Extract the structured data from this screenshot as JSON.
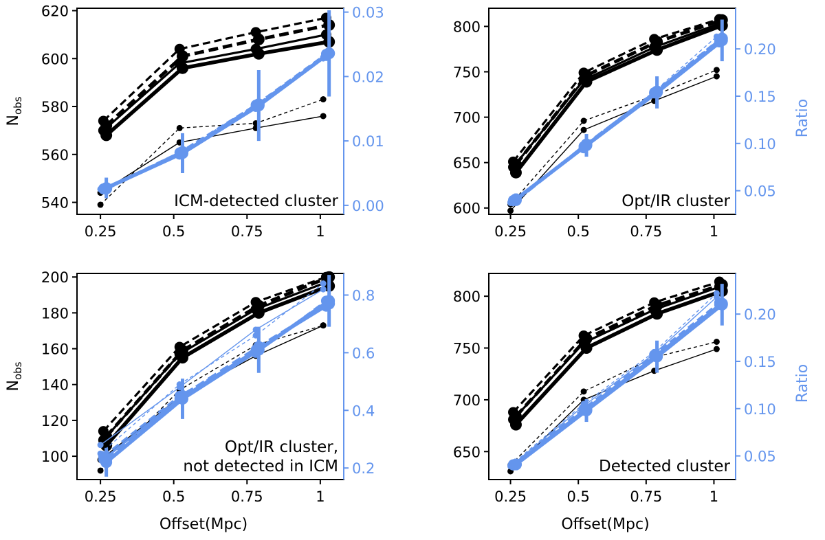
{
  "figure": {
    "colors": {
      "left": "#000000",
      "right": "#6495ED"
    },
    "xlabel": "Offset(Mpc)",
    "ylabel_left": "N_obs",
    "ylabel_right": "Ratio"
  },
  "chart_data": [
    {
      "type": "line",
      "annotation": [
        "ICM-detected cluster"
      ],
      "x_ticks": [
        0.25,
        0.5,
        0.75,
        1
      ],
      "x_tick_labels": [
        "0.25",
        "0.5",
        "0.75",
        "1"
      ],
      "xlim": [
        0.17,
        1.08
      ],
      "left_ylim": [
        535,
        621
      ],
      "left_ticks": [
        540,
        560,
        580,
        600,
        620
      ],
      "right_ylim": [
        -0.0014,
        0.0306
      ],
      "right_ticks": [
        0.0,
        0.01,
        0.02,
        0.03
      ],
      "right_tick_labels": [
        "0.00",
        "0.01",
        "0.02",
        "0.03"
      ],
      "show_xlabel": false,
      "show_left_label": true,
      "show_right_label": false,
      "series": [
        {
          "name": "N_obs thin dashed",
          "axis": "left",
          "style": "thin-dashed",
          "x": [
            0.25,
            0.52,
            0.78,
            1.01
          ],
          "values": [
            539,
            571,
            573,
            583
          ]
        },
        {
          "name": "N_obs thin solid",
          "axis": "left",
          "style": "thin-solid",
          "x": [
            0.25,
            0.52,
            0.78,
            1.01
          ],
          "values": [
            544,
            565,
            571,
            576
          ]
        },
        {
          "name": "N_obs medium dashed",
          "axis": "left",
          "style": "medium-dashed",
          "x": [
            0.26,
            0.52,
            0.78,
            1.02
          ],
          "values": [
            574,
            604,
            611,
            617
          ]
        },
        {
          "name": "N_obs medium solid",
          "axis": "left",
          "style": "medium-solid",
          "x": [
            0.26,
            0.52,
            0.78,
            1.02
          ],
          "values": [
            570,
            598,
            604,
            610
          ]
        },
        {
          "name": "N_obs thick dashed",
          "axis": "left",
          "style": "thick-dashed",
          "x": [
            0.27,
            0.53,
            0.79,
            1.03
          ],
          "values": [
            572,
            601,
            608,
            614
          ]
        },
        {
          "name": "N_obs thick solid",
          "axis": "left",
          "style": "thick-solid",
          "x": [
            0.27,
            0.53,
            0.79,
            1.03
          ],
          "values": [
            568,
            596,
            602,
            607
          ]
        },
        {
          "name": "Ratio thin dashed",
          "axis": "right",
          "style": "thin-dashed",
          "x": [
            0.25,
            0.52,
            0.78,
            1.01
          ],
          "values": [
            0.0025,
            0.008,
            0.0155,
            0.023
          ]
        },
        {
          "name": "Ratio thin solid",
          "axis": "right",
          "style": "thin-solid",
          "x": [
            0.25,
            0.52,
            0.78,
            1.01
          ],
          "values": [
            0.0025,
            0.0078,
            0.0152,
            0.0228
          ]
        },
        {
          "name": "Ratio medium dashed",
          "axis": "right",
          "style": "medium-dashed",
          "x": [
            0.26,
            0.52,
            0.78,
            1.02
          ],
          "values": [
            0.0025,
            0.0082,
            0.0156,
            0.0235
          ]
        },
        {
          "name": "Ratio medium solid",
          "axis": "right",
          "style": "medium-solid",
          "x": [
            0.26,
            0.52,
            0.78,
            1.02
          ],
          "values": [
            0.0026,
            0.0079,
            0.0153,
            0.0232
          ]
        },
        {
          "name": "Ratio thick dashed",
          "axis": "right",
          "style": "thick-dashed",
          "x": [
            0.27,
            0.53,
            0.79,
            1.03
          ],
          "values": [
            0.0026,
            0.0083,
            0.0157,
            0.0236
          ]
        },
        {
          "name": "Ratio thick solid",
          "axis": "right",
          "style": "thick-solid",
          "x": [
            0.27,
            0.53,
            0.79,
            1.03
          ],
          "values": [
            0.0027,
            0.0081,
            0.0155,
            0.0236
          ],
          "errors": [
            0.0016,
            0.0031,
            0.0055,
            0.0067
          ]
        }
      ]
    },
    {
      "type": "line",
      "annotation": [
        "Opt/IR cluster"
      ],
      "x_ticks": [
        0.25,
        0.5,
        0.75,
        1
      ],
      "x_tick_labels": [
        "0.25",
        "0.5",
        "0.75",
        "1"
      ],
      "xlim": [
        0.17,
        1.08
      ],
      "left_ylim": [
        593,
        820
      ],
      "left_ticks": [
        600,
        650,
        700,
        750,
        800
      ],
      "right_ylim": [
        0.025,
        0.243
      ],
      "right_ticks": [
        0.05,
        0.1,
        0.15,
        0.2
      ],
      "right_tick_labels": [
        "0.05",
        "0.10",
        "0.15",
        "0.20"
      ],
      "show_xlabel": false,
      "show_left_label": false,
      "show_right_label": true,
      "series": [
        {
          "name": "N_obs thin dashed",
          "axis": "left",
          "style": "thin-dashed",
          "x": [
            0.25,
            0.52,
            0.78,
            1.01
          ],
          "values": [
            604,
            696,
            724,
            752
          ]
        },
        {
          "name": "N_obs thin solid",
          "axis": "left",
          "style": "thin-solid",
          "x": [
            0.25,
            0.52,
            0.78,
            1.01
          ],
          "values": [
            597,
            686,
            718,
            745
          ]
        },
        {
          "name": "N_obs medium dashed",
          "axis": "left",
          "style": "medium-dashed",
          "x": [
            0.26,
            0.52,
            0.78,
            1.02
          ],
          "values": [
            651,
            749,
            786,
            808
          ]
        },
        {
          "name": "N_obs medium solid",
          "axis": "left",
          "style": "medium-solid",
          "x": [
            0.26,
            0.52,
            0.78,
            1.02
          ],
          "values": [
            645,
            741,
            777,
            803
          ]
        },
        {
          "name": "N_obs thick dashed",
          "axis": "left",
          "style": "thick-dashed",
          "x": [
            0.27,
            0.53,
            0.79,
            1.03
          ],
          "values": [
            648,
            746,
            783,
            807
          ]
        },
        {
          "name": "N_obs thick solid",
          "axis": "left",
          "style": "thick-solid",
          "x": [
            0.27,
            0.53,
            0.79,
            1.03
          ],
          "values": [
            639,
            739,
            774,
            801
          ]
        },
        {
          "name": "Ratio thin dashed",
          "axis": "right",
          "style": "thin-dashed",
          "x": [
            0.25,
            0.52,
            0.78,
            1.01
          ],
          "values": [
            0.038,
            0.098,
            0.155,
            0.213
          ]
        },
        {
          "name": "Ratio thin solid",
          "axis": "right",
          "style": "thin-solid",
          "x": [
            0.25,
            0.52,
            0.78,
            1.01
          ],
          "values": [
            0.037,
            0.096,
            0.152,
            0.205
          ]
        },
        {
          "name": "Ratio medium dashed",
          "axis": "right",
          "style": "medium-dashed",
          "x": [
            0.26,
            0.52,
            0.78,
            1.02
          ],
          "values": [
            0.039,
            0.097,
            0.154,
            0.21
          ]
        },
        {
          "name": "Ratio medium solid",
          "axis": "right",
          "style": "medium-solid",
          "x": [
            0.26,
            0.52,
            0.78,
            1.02
          ],
          "values": [
            0.04,
            0.095,
            0.153,
            0.207
          ]
        },
        {
          "name": "Ratio thick dashed",
          "axis": "right",
          "style": "thick-dashed",
          "x": [
            0.27,
            0.53,
            0.79,
            1.03
          ],
          "values": [
            0.04,
            0.099,
            0.155,
            0.211
          ]
        },
        {
          "name": "Ratio thick solid",
          "axis": "right",
          "style": "thick-solid",
          "x": [
            0.27,
            0.53,
            0.79,
            1.03
          ],
          "values": [
            0.041,
            0.098,
            0.154,
            0.209
          ],
          "errors": [
            0.006,
            0.012,
            0.017,
            0.022
          ]
        }
      ]
    },
    {
      "type": "line",
      "annotation": [
        "Opt/IR cluster,",
        "not detected in ICM"
      ],
      "x_ticks": [
        0.25,
        0.5,
        0.75,
        1
      ],
      "x_tick_labels": [
        "0.25",
        "0.5",
        "0.75",
        "1"
      ],
      "xlim": [
        0.17,
        1.08
      ],
      "left_ylim": [
        87,
        202
      ],
      "left_ticks": [
        100,
        120,
        140,
        160,
        180,
        200
      ],
      "right_ylim": [
        0.16,
        0.875
      ],
      "right_ticks": [
        0.2,
        0.4,
        0.6,
        0.8
      ],
      "right_tick_labels": [
        "0.2",
        "0.4",
        "0.6",
        "0.8"
      ],
      "show_xlabel": true,
      "show_left_label": true,
      "show_right_label": false,
      "series": [
        {
          "name": "N_obs thin dashed",
          "axis": "left",
          "style": "thin-dashed",
          "x": [
            0.25,
            0.52,
            0.78,
            1.01
          ],
          "values": [
            92,
            137,
            162,
            173
          ]
        },
        {
          "name": "N_obs thin solid",
          "axis": "left",
          "style": "thin-solid",
          "x": [
            0.25,
            0.52,
            0.78,
            1.01
          ],
          "values": [
            98,
            133,
            156,
            173
          ]
        },
        {
          "name": "N_obs medium dashed",
          "axis": "left",
          "style": "medium-dashed",
          "x": [
            0.26,
            0.52,
            0.78,
            1.02
          ],
          "values": [
            114,
            161,
            186,
            200
          ]
        },
        {
          "name": "N_obs medium solid",
          "axis": "left",
          "style": "medium-solid",
          "x": [
            0.26,
            0.52,
            0.78,
            1.02
          ],
          "values": [
            109,
            157,
            182,
            197
          ]
        },
        {
          "name": "N_obs thick dashed",
          "axis": "left",
          "style": "thick-dashed",
          "x": [
            0.27,
            0.53,
            0.79,
            1.03
          ],
          "values": [
            111,
            159,
            184,
            200
          ]
        },
        {
          "name": "N_obs thick solid",
          "axis": "left",
          "style": "thick-solid",
          "x": [
            0.27,
            0.53,
            0.79,
            1.03
          ],
          "values": [
            106,
            155,
            180,
            195
          ]
        },
        {
          "name": "Ratio thin dashed",
          "axis": "right",
          "style": "thin-dashed",
          "x": [
            0.25,
            0.52,
            0.78,
            1.01
          ],
          "values": [
            0.25,
            0.49,
            0.66,
            0.84
          ]
        },
        {
          "name": "Ratio thin solid",
          "axis": "right",
          "style": "thin-solid",
          "x": [
            0.25,
            0.52,
            0.78,
            1.01
          ],
          "values": [
            0.28,
            0.48,
            0.68,
            0.82
          ]
        },
        {
          "name": "Ratio medium dashed",
          "axis": "right",
          "style": "medium-dashed",
          "x": [
            0.26,
            0.52,
            0.78,
            1.02
          ],
          "values": [
            0.24,
            0.45,
            0.6,
            0.78
          ]
        },
        {
          "name": "Ratio medium solid",
          "axis": "right",
          "style": "medium-solid",
          "x": [
            0.26,
            0.52,
            0.78,
            1.02
          ],
          "values": [
            0.23,
            0.44,
            0.61,
            0.76
          ]
        },
        {
          "name": "Ratio thick dashed",
          "axis": "right",
          "style": "thick-dashed",
          "x": [
            0.27,
            0.53,
            0.79,
            1.03
          ],
          "values": [
            0.23,
            0.45,
            0.62,
            0.77
          ]
        },
        {
          "name": "Ratio thick solid",
          "axis": "right",
          "style": "thick-solid",
          "x": [
            0.27,
            0.53,
            0.79,
            1.03
          ],
          "values": [
            0.22,
            0.44,
            0.61,
            0.78
          ],
          "errors": [
            0.05,
            0.07,
            0.08,
            0.09
          ]
        }
      ]
    },
    {
      "type": "line",
      "annotation": [
        "Detected cluster"
      ],
      "x_ticks": [
        0.25,
        0.5,
        0.75,
        1
      ],
      "x_tick_labels": [
        "0.25",
        "0.5",
        "0.75",
        "1"
      ],
      "xlim": [
        0.17,
        1.08
      ],
      "left_ylim": [
        623,
        822
      ],
      "left_ticks": [
        650,
        700,
        750,
        800
      ],
      "right_ylim": [
        0.025,
        0.243
      ],
      "right_ticks": [
        0.05,
        0.1,
        0.15,
        0.2
      ],
      "right_tick_labels": [
        "0.05",
        "0.10",
        "0.15",
        "0.20"
      ],
      "show_xlabel": true,
      "show_left_label": false,
      "show_right_label": true,
      "series": [
        {
          "name": "N_obs thin dashed",
          "axis": "left",
          "style": "thin-dashed",
          "x": [
            0.25,
            0.52,
            0.78,
            1.01
          ],
          "values": [
            637,
            708,
            741,
            756
          ]
        },
        {
          "name": "N_obs thin solid",
          "axis": "left",
          "style": "thin-solid",
          "x": [
            0.25,
            0.52,
            0.78,
            1.01
          ],
          "values": [
            631,
            700,
            728,
            749
          ]
        },
        {
          "name": "N_obs medium dashed",
          "axis": "left",
          "style": "medium-dashed",
          "x": [
            0.26,
            0.52,
            0.78,
            1.02
          ],
          "values": [
            688,
            762,
            794,
            814
          ]
        },
        {
          "name": "N_obs medium solid",
          "axis": "left",
          "style": "medium-solid",
          "x": [
            0.26,
            0.52,
            0.78,
            1.02
          ],
          "values": [
            681,
            755,
            787,
            809
          ]
        },
        {
          "name": "N_obs thick dashed",
          "axis": "left",
          "style": "thick-dashed",
          "x": [
            0.27,
            0.53,
            0.79,
            1.03
          ],
          "values": [
            684,
            759,
            791,
            811
          ]
        },
        {
          "name": "N_obs thick solid",
          "axis": "left",
          "style": "thick-solid",
          "x": [
            0.27,
            0.53,
            0.79,
            1.03
          ],
          "values": [
            676,
            750,
            783,
            805
          ]
        },
        {
          "name": "Ratio thin dashed",
          "axis": "right",
          "style": "thin-dashed",
          "x": [
            0.25,
            0.52,
            0.78,
            1.01
          ],
          "values": [
            0.04,
            0.105,
            0.16,
            0.222
          ]
        },
        {
          "name": "Ratio thin solid",
          "axis": "right",
          "style": "thin-solid",
          "x": [
            0.25,
            0.52,
            0.78,
            1.01
          ],
          "values": [
            0.039,
            0.103,
            0.158,
            0.218
          ]
        },
        {
          "name": "Ratio medium dashed",
          "axis": "right",
          "style": "medium-dashed",
          "x": [
            0.26,
            0.52,
            0.78,
            1.02
          ],
          "values": [
            0.041,
            0.1,
            0.157,
            0.212
          ]
        },
        {
          "name": "Ratio medium solid",
          "axis": "right",
          "style": "medium-solid",
          "x": [
            0.26,
            0.52,
            0.78,
            1.02
          ],
          "values": [
            0.04,
            0.098,
            0.155,
            0.21
          ]
        },
        {
          "name": "Ratio thick dashed",
          "axis": "right",
          "style": "thick-dashed",
          "x": [
            0.27,
            0.53,
            0.79,
            1.03
          ],
          "values": [
            0.041,
            0.099,
            0.156,
            0.211
          ]
        },
        {
          "name": "Ratio thick solid",
          "axis": "right",
          "style": "thick-solid",
          "x": [
            0.27,
            0.53,
            0.79,
            1.03
          ],
          "values": [
            0.041,
            0.098,
            0.155,
            0.21
          ],
          "errors": [
            0.006,
            0.012,
            0.017,
            0.022
          ]
        }
      ]
    }
  ]
}
